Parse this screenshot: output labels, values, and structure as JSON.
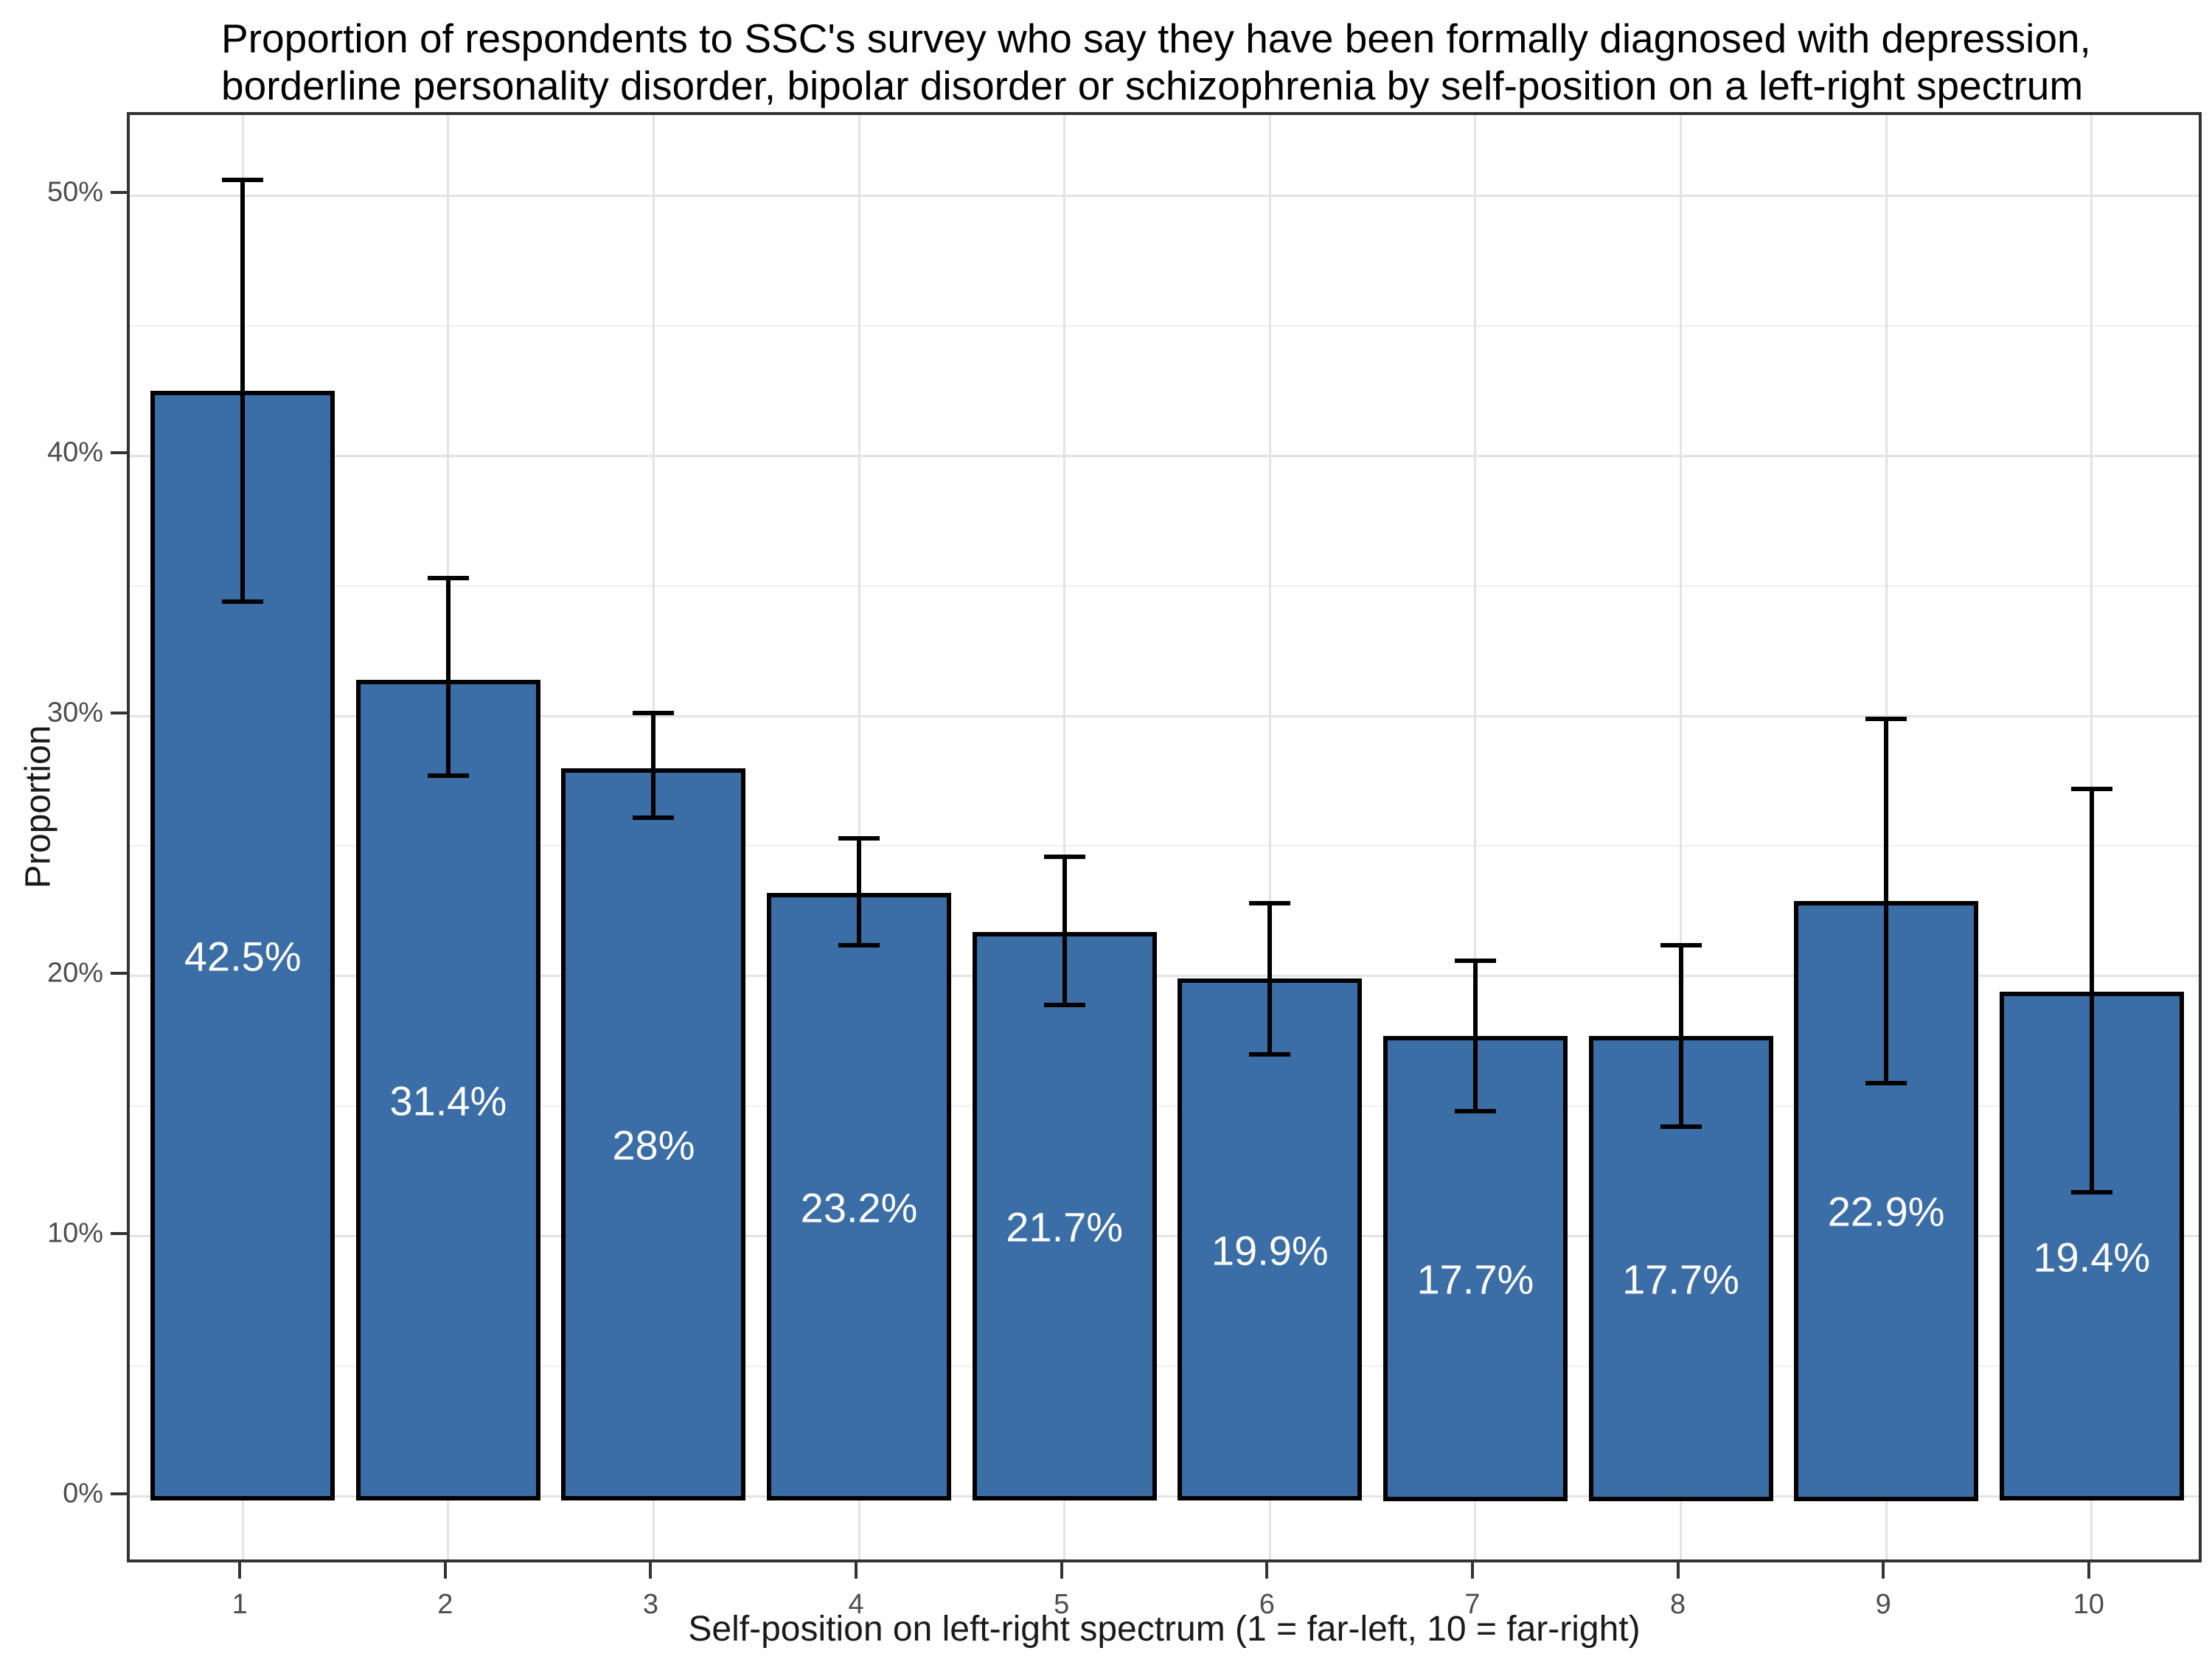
{
  "title": {
    "line1": "Proportion of respondents to SSC's survey who say they have been formally diagnosed with depression,",
    "line2": "borderline personality disorder, bipolar disorder or schizophrenia by self-position on a left-right spectrum"
  },
  "chart_data": {
    "type": "bar",
    "categories": [
      "1",
      "2",
      "3",
      "4",
      "5",
      "6",
      "7",
      "8",
      "9",
      "10"
    ],
    "values": [
      42.5,
      31.4,
      28,
      23.2,
      21.7,
      19.9,
      17.7,
      17.7,
      22.9,
      19.4
    ],
    "bar_labels": [
      "42.5%",
      "31.4%",
      "28%",
      "23.2%",
      "21.7%",
      "19.9%",
      "17.7%",
      "17.7%",
      "22.9%",
      "19.4%"
    ],
    "ci_low": [
      34.4,
      27.7,
      26.1,
      21.2,
      18.9,
      17.0,
      14.8,
      14.2,
      15.9,
      11.7
    ],
    "ci_high": [
      50.6,
      35.3,
      30.1,
      25.3,
      24.6,
      22.8,
      20.6,
      21.2,
      29.9,
      27.2
    ],
    "xlabel": "Self-position on left-right spectrum (1 = far-left, 10 = far-right)",
    "ylabel": "Proportion",
    "y_ticks": [
      {
        "value": 0,
        "label": "0%"
      },
      {
        "value": 10,
        "label": "10%"
      },
      {
        "value": 20,
        "label": "20%"
      },
      {
        "value": 30,
        "label": "30%"
      },
      {
        "value": 40,
        "label": "40%"
      },
      {
        "value": 50,
        "label": "50%"
      }
    ],
    "y_minor_values": [
      5,
      15,
      25,
      35,
      45
    ],
    "ylim": [
      -2.65,
      53.1
    ],
    "grid": true,
    "legend": "none",
    "colors": {
      "bar_fill": "#3B6DA6",
      "bar_border": "#000000",
      "error_bar": "#000000",
      "grid_major": "#E3E3E3",
      "grid_minor": "#EFEFEF",
      "panel_border": "#333333",
      "tick_text": "#4D4D4D",
      "axis_title_text": "#1a1a1a",
      "title_text": "#000000",
      "bar_label_text": "#FFFFFF"
    }
  }
}
